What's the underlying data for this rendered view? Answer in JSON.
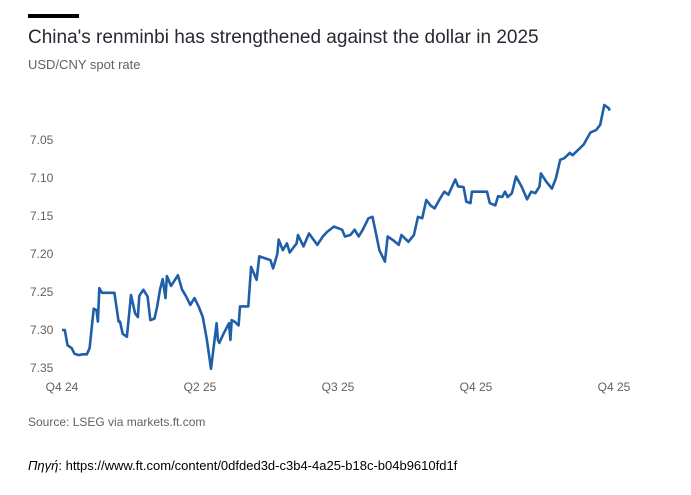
{
  "chart_data": {
    "type": "line",
    "title": "China's renminbi has strengthened against the dollar in 2025",
    "subtitle": "USD/CNY spot rate",
    "xlabel": "",
    "ylabel": "",
    "y_inverted": true,
    "ylim": [
      7.0,
      7.35
    ],
    "yticks": [
      "7.05",
      "7.10",
      "7.15",
      "7.20",
      "7.25",
      "7.30",
      "7.35"
    ],
    "ytick_values": [
      7.05,
      7.1,
      7.15,
      7.2,
      7.25,
      7.3,
      7.35
    ],
    "xticks": [
      "Q4 24",
      "Q2 25",
      "Q3 25",
      "Q4 25",
      "Q4 25"
    ],
    "xtick_positions": [
      0,
      1,
      2,
      3,
      4
    ],
    "grid": false,
    "color": "#1f5fa8",
    "series": [
      {
        "name": "USD/CNY",
        "x": [
          0.0,
          0.02,
          0.04,
          0.07,
          0.09,
          0.12,
          0.15,
          0.18,
          0.2,
          0.23,
          0.25,
          0.26,
          0.27,
          0.29,
          0.38,
          0.41,
          0.42,
          0.44,
          0.47,
          0.5,
          0.53,
          0.55,
          0.56,
          0.59,
          0.62,
          0.64,
          0.67,
          0.69,
          0.71,
          0.73,
          0.75,
          0.76,
          0.79,
          0.84,
          0.87,
          0.9,
          0.93,
          0.96,
          0.99,
          1.02,
          1.05,
          1.08,
          1.12,
          1.13,
          1.14,
          1.17,
          1.21,
          1.215,
          1.22,
          1.23,
          1.25,
          1.28,
          1.29,
          1.35,
          1.37,
          1.41,
          1.43,
          1.51,
          1.53,
          1.56,
          1.57,
          1.6,
          1.63,
          1.65,
          1.7,
          1.71,
          1.75,
          1.79,
          1.85,
          1.89,
          1.92,
          1.97,
          2.03,
          2.05,
          2.09,
          2.12,
          2.15,
          2.18,
          2.22,
          2.25,
          2.28,
          2.3,
          2.34,
          2.36,
          2.4,
          2.44,
          2.46,
          2.51,
          2.55,
          2.58,
          2.61,
          2.64,
          2.67,
          2.7,
          2.74,
          2.77,
          2.8,
          2.85,
          2.87,
          2.91,
          2.93,
          2.96,
          2.97,
          3.08,
          3.1,
          3.14,
          3.16,
          3.19,
          3.21,
          3.23,
          3.26,
          3.29,
          3.33,
          3.37,
          3.4,
          3.43,
          3.46,
          3.47,
          3.51,
          3.55,
          3.58,
          3.61,
          3.64,
          3.68,
          3.7,
          3.74,
          3.78,
          3.83,
          3.87,
          3.9,
          3.93,
          3.96,
          3.97
        ],
        "values": [
          7.3,
          7.3,
          7.32,
          7.324,
          7.331,
          7.333,
          7.332,
          7.332,
          7.324,
          7.272,
          7.274,
          7.289,
          7.245,
          7.251,
          7.251,
          7.289,
          7.289,
          7.305,
          7.309,
          7.254,
          7.278,
          7.283,
          7.255,
          7.247,
          7.256,
          7.287,
          7.285,
          7.269,
          7.247,
          7.233,
          7.258,
          7.229,
          7.242,
          7.228,
          7.247,
          7.256,
          7.267,
          7.258,
          7.269,
          7.283,
          7.313,
          7.351,
          7.291,
          7.313,
          7.317,
          7.305,
          7.291,
          7.302,
          7.313,
          7.287,
          7.289,
          7.294,
          7.269,
          7.269,
          7.217,
          7.234,
          7.203,
          7.208,
          7.219,
          7.2,
          7.181,
          7.195,
          7.186,
          7.198,
          7.186,
          7.175,
          7.19,
          7.173,
          7.188,
          7.177,
          7.171,
          7.164,
          7.168,
          7.177,
          7.175,
          7.168,
          7.177,
          7.168,
          7.153,
          7.151,
          7.177,
          7.195,
          7.21,
          7.177,
          7.182,
          7.188,
          7.175,
          7.184,
          7.175,
          7.151,
          7.153,
          7.129,
          7.136,
          7.14,
          7.127,
          7.118,
          7.122,
          7.102,
          7.111,
          7.112,
          7.131,
          7.133,
          7.118,
          7.118,
          7.133,
          7.136,
          7.124,
          7.125,
          7.118,
          7.125,
          7.12,
          7.098,
          7.111,
          7.128,
          7.118,
          7.12,
          7.111,
          7.094,
          7.105,
          7.114,
          7.1,
          7.076,
          7.074,
          7.067,
          7.07,
          7.063,
          7.056,
          7.04,
          7.037,
          7.03,
          7.004,
          7.008,
          7.011
        ]
      }
    ],
    "source": "Source: LSEG via markets.ft.com"
  },
  "footer": {
    "label": "Πηγή",
    "separator": ": ",
    "url": "https://www.ft.com/content/0dfded3d-c3b4-4a25-b18c-b04b9610fd1f"
  }
}
